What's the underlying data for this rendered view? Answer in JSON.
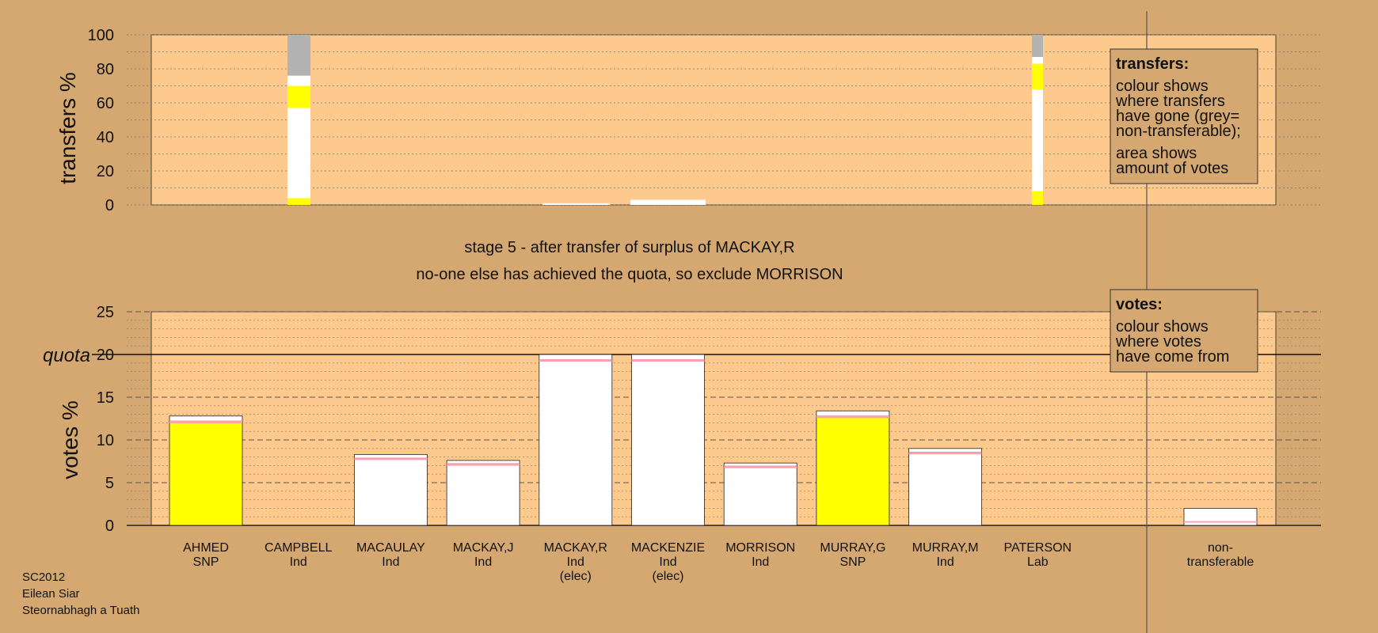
{
  "stage_lines": [
    "stage 5 - after transfer of surplus of MACKAY,R",
    "no-one else has achieved the quota, so exclude MORRISON"
  ],
  "transfers_legend": {
    "title": "transfers:",
    "lines": [
      "colour shows",
      "where transfers",
      "have gone (grey=",
      "non-transferable);",
      "area shows",
      "amount of votes"
    ]
  },
  "votes_legend": {
    "title": "votes:",
    "lines": [
      "colour shows",
      "where votes",
      "have come from"
    ]
  },
  "meta_lines": [
    "SC2012",
    "Eilean Siar",
    "Steornabhagh a Tuath"
  ],
  "quota_label": "quota",
  "colors": {
    "background": "#d4a870",
    "plot": "#fdc98c",
    "snp": "#ffff00",
    "ind": "#ffffff",
    "lab": "#ffc0cb",
    "nontransferable": "#b3b3b3"
  },
  "chart_data": [
    {
      "type": "bar",
      "name": "transfers",
      "ylabel": "transfers %",
      "ylim": [
        0,
        100
      ],
      "yticks": [
        0,
        20,
        40,
        60,
        80,
        100
      ],
      "grid": true,
      "columns": [
        {
          "segments": [
            {
              "color": "snp",
              "value": 4
            },
            {
              "color": "ind",
              "value": 53
            },
            {
              "color": "snp",
              "value": 13
            },
            {
              "color": "ind",
              "value": 6
            },
            {
              "color": "nontransferable",
              "value": 24
            }
          ]
        },
        {
          "segments": [
            {
              "color": "ind",
              "value": 1
            }
          ]
        },
        {
          "segments": [
            {
              "color": "ind",
              "value": 3
            }
          ]
        },
        {
          "segments": [
            {
              "color": "snp",
              "value": 8
            },
            {
              "color": "ind",
              "value": 60
            },
            {
              "color": "snp",
              "value": 15
            },
            {
              "color": "ind",
              "value": 4
            },
            {
              "color": "nontransferable",
              "value": 13
            }
          ]
        }
      ]
    },
    {
      "type": "bar",
      "name": "votes",
      "ylabel": "votes %",
      "ylim": [
        0,
        25
      ],
      "yticks": [
        0,
        5,
        10,
        15,
        20,
        25
      ],
      "quota": 20,
      "grid": true,
      "categories": [
        [
          "AHMED",
          "SNP"
        ],
        [
          "CAMPBELL",
          "Ind"
        ],
        [
          "MACAULAY",
          "Ind"
        ],
        [
          "MACKAY,J",
          "Ind"
        ],
        [
          "MACKAY,R",
          "Ind",
          "(elec)"
        ],
        [
          "MACKENZIE",
          "Ind",
          "(elec)"
        ],
        [
          "MORRISON",
          "Ind"
        ],
        [
          "MURRAY,G",
          "SNP"
        ],
        [
          "MURRAY,M",
          "Ind"
        ],
        [
          "PATERSON",
          "Lab"
        ]
      ],
      "nontransferable_label": [
        "non-",
        "transferable"
      ],
      "totals": [
        12.8,
        0,
        8.3,
        7.6,
        20,
        20,
        7.3,
        13.4,
        9.0,
        0
      ],
      "nontransferable": 2.0
    }
  ]
}
